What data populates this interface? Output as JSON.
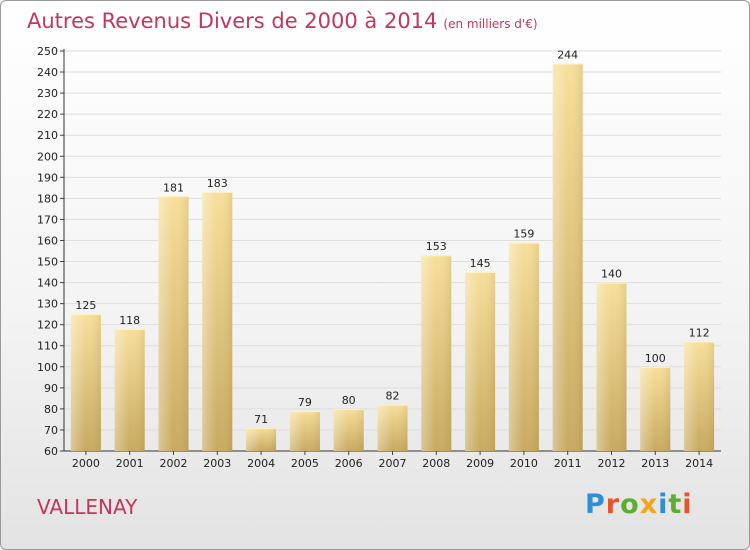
{
  "title": "Autres Revenus Divers de 2000 à 2014",
  "subtitle": "(en milliers d'€)",
  "commune": "VALLENAY",
  "logo": "Proxiti",
  "colors": {
    "title": "#c4365a",
    "bar_light": "#f7df9a",
    "bar_dark": "#c7a95f",
    "grid": "#dddddd",
    "logo": [
      "#2f8fd6",
      "#e8532c",
      "#5dae2f",
      "#f2a51c",
      "#2f8fd6",
      "#5dae2f",
      "#e8532c"
    ]
  },
  "chart_data": {
    "type": "bar",
    "categories": [
      "2000",
      "2001",
      "2002",
      "2003",
      "2004",
      "2005",
      "2006",
      "2007",
      "2008",
      "2009",
      "2010",
      "2011",
      "2012",
      "2013",
      "2014"
    ],
    "values": [
      125,
      118,
      181,
      183,
      71,
      79,
      80,
      82,
      153,
      145,
      159,
      244,
      140,
      100,
      112
    ],
    "title": "Autres Revenus Divers de 2000 à 2014",
    "subtitle": "(en milliers d'€)",
    "xlabel": "",
    "ylabel": "",
    "ylim": [
      60,
      250
    ],
    "ytick_step": 10,
    "grid": true,
    "data_labels": true
  }
}
